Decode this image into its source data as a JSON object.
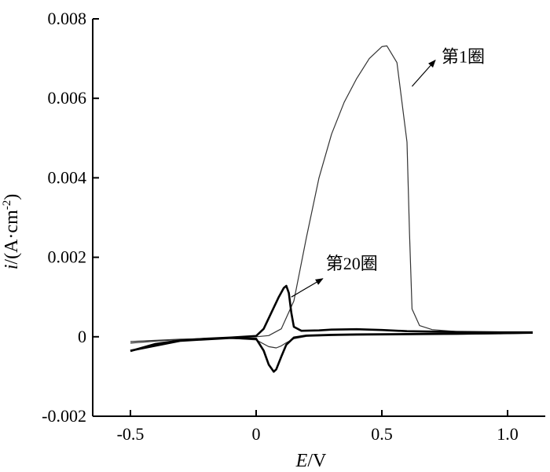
{
  "chart_data": {
    "type": "line",
    "title": "",
    "xlabel": {
      "var": "E",
      "unit": "/V"
    },
    "ylabel": {
      "var": "i",
      "unit": "/(A·cm",
      "sup": "-2",
      "close": ")"
    },
    "xlim": [
      -0.65,
      1.15
    ],
    "ylim": [
      -0.002,
      0.008
    ],
    "xticks": [
      -0.5,
      0,
      0.5,
      1.0
    ],
    "xtick_labels": [
      "-0.5",
      "0",
      "0.5",
      "1.0"
    ],
    "yticks": [
      -0.002,
      0,
      0.002,
      0.004,
      0.006,
      0.008
    ],
    "ytick_labels": [
      "-0.002",
      "0",
      "0.002",
      "0.004",
      "0.006",
      "0.008"
    ],
    "grid": false,
    "legend": "none",
    "series": [
      {
        "role": "cycle-1",
        "color": "#333333",
        "forward_x": [
          -0.5,
          -0.4,
          -0.3,
          -0.2,
          -0.1,
          0.0,
          0.05,
          0.1,
          0.15,
          0.2,
          0.25,
          0.3,
          0.35,
          0.4,
          0.45,
          0.5,
          0.52,
          0.56,
          0.6,
          0.61,
          0.62,
          0.65,
          0.7,
          0.8,
          0.9,
          1.0,
          1.1
        ],
        "forward_y": [
          -0.00016,
          -0.00011,
          -7e-05,
          -4e-05,
          -2e-05,
          0.0,
          3e-05,
          0.0002,
          0.0009,
          0.0025,
          0.004,
          0.0051,
          0.0059,
          0.0065,
          0.007,
          0.0073,
          0.00732,
          0.0069,
          0.0049,
          0.0026,
          0.0007,
          0.00028,
          0.00018,
          0.00013,
          0.00011,
          0.0001,
          0.0001
        ],
        "reverse_x": [
          1.1,
          1.0,
          0.8,
          0.6,
          0.4,
          0.3,
          0.2,
          0.15,
          0.12,
          0.1,
          0.08,
          0.05,
          0.0,
          -0.1,
          -0.3,
          -0.5
        ],
        "reverse_y": [
          9e-05,
          8e-05,
          6e-05,
          5e-05,
          4e-05,
          3e-05,
          1e-05,
          -5e-05,
          -0.00015,
          -0.00023,
          -0.00028,
          -0.00025,
          -8e-05,
          -4e-05,
          -6e-05,
          -0.00012
        ]
      },
      {
        "role": "cycle-20",
        "color": "#000000",
        "forward_x": [
          -0.5,
          -0.4,
          -0.3,
          -0.2,
          -0.1,
          0.0,
          0.03,
          0.06,
          0.09,
          0.11,
          0.12,
          0.13,
          0.14,
          0.15,
          0.18,
          0.25,
          0.3,
          0.4,
          0.5,
          0.6,
          0.8,
          1.0,
          1.1
        ],
        "forward_y": [
          -0.00036,
          -0.00018,
          -9e-05,
          -5e-05,
          -2e-05,
          2e-05,
          0.0002,
          0.0006,
          0.001,
          0.00123,
          0.00128,
          0.0011,
          0.0006,
          0.00025,
          0.00015,
          0.00016,
          0.00018,
          0.00019,
          0.00017,
          0.00014,
          0.00012,
          0.00011,
          0.00011
        ],
        "reverse_x": [
          1.1,
          1.0,
          0.8,
          0.6,
          0.4,
          0.3,
          0.2,
          0.15,
          0.12,
          0.1,
          0.08,
          0.07,
          0.05,
          0.03,
          0.0,
          -0.1,
          -0.3,
          -0.5
        ],
        "reverse_y": [
          0.0001,
          9e-05,
          8e-05,
          7e-05,
          6e-05,
          5e-05,
          3e-05,
          -2e-05,
          -0.0002,
          -0.0005,
          -0.00082,
          -0.00088,
          -0.0007,
          -0.00035,
          -5e-05,
          -3e-05,
          -0.0001,
          -0.00035
        ]
      }
    ],
    "annotations": [
      {
        "id": "cycle1",
        "text": "第1圈",
        "x": 0.7,
        "y": 0.0069
      },
      {
        "id": "cycle20",
        "text": "第20圈",
        "x": 0.24,
        "y": 0.0017
      }
    ]
  }
}
